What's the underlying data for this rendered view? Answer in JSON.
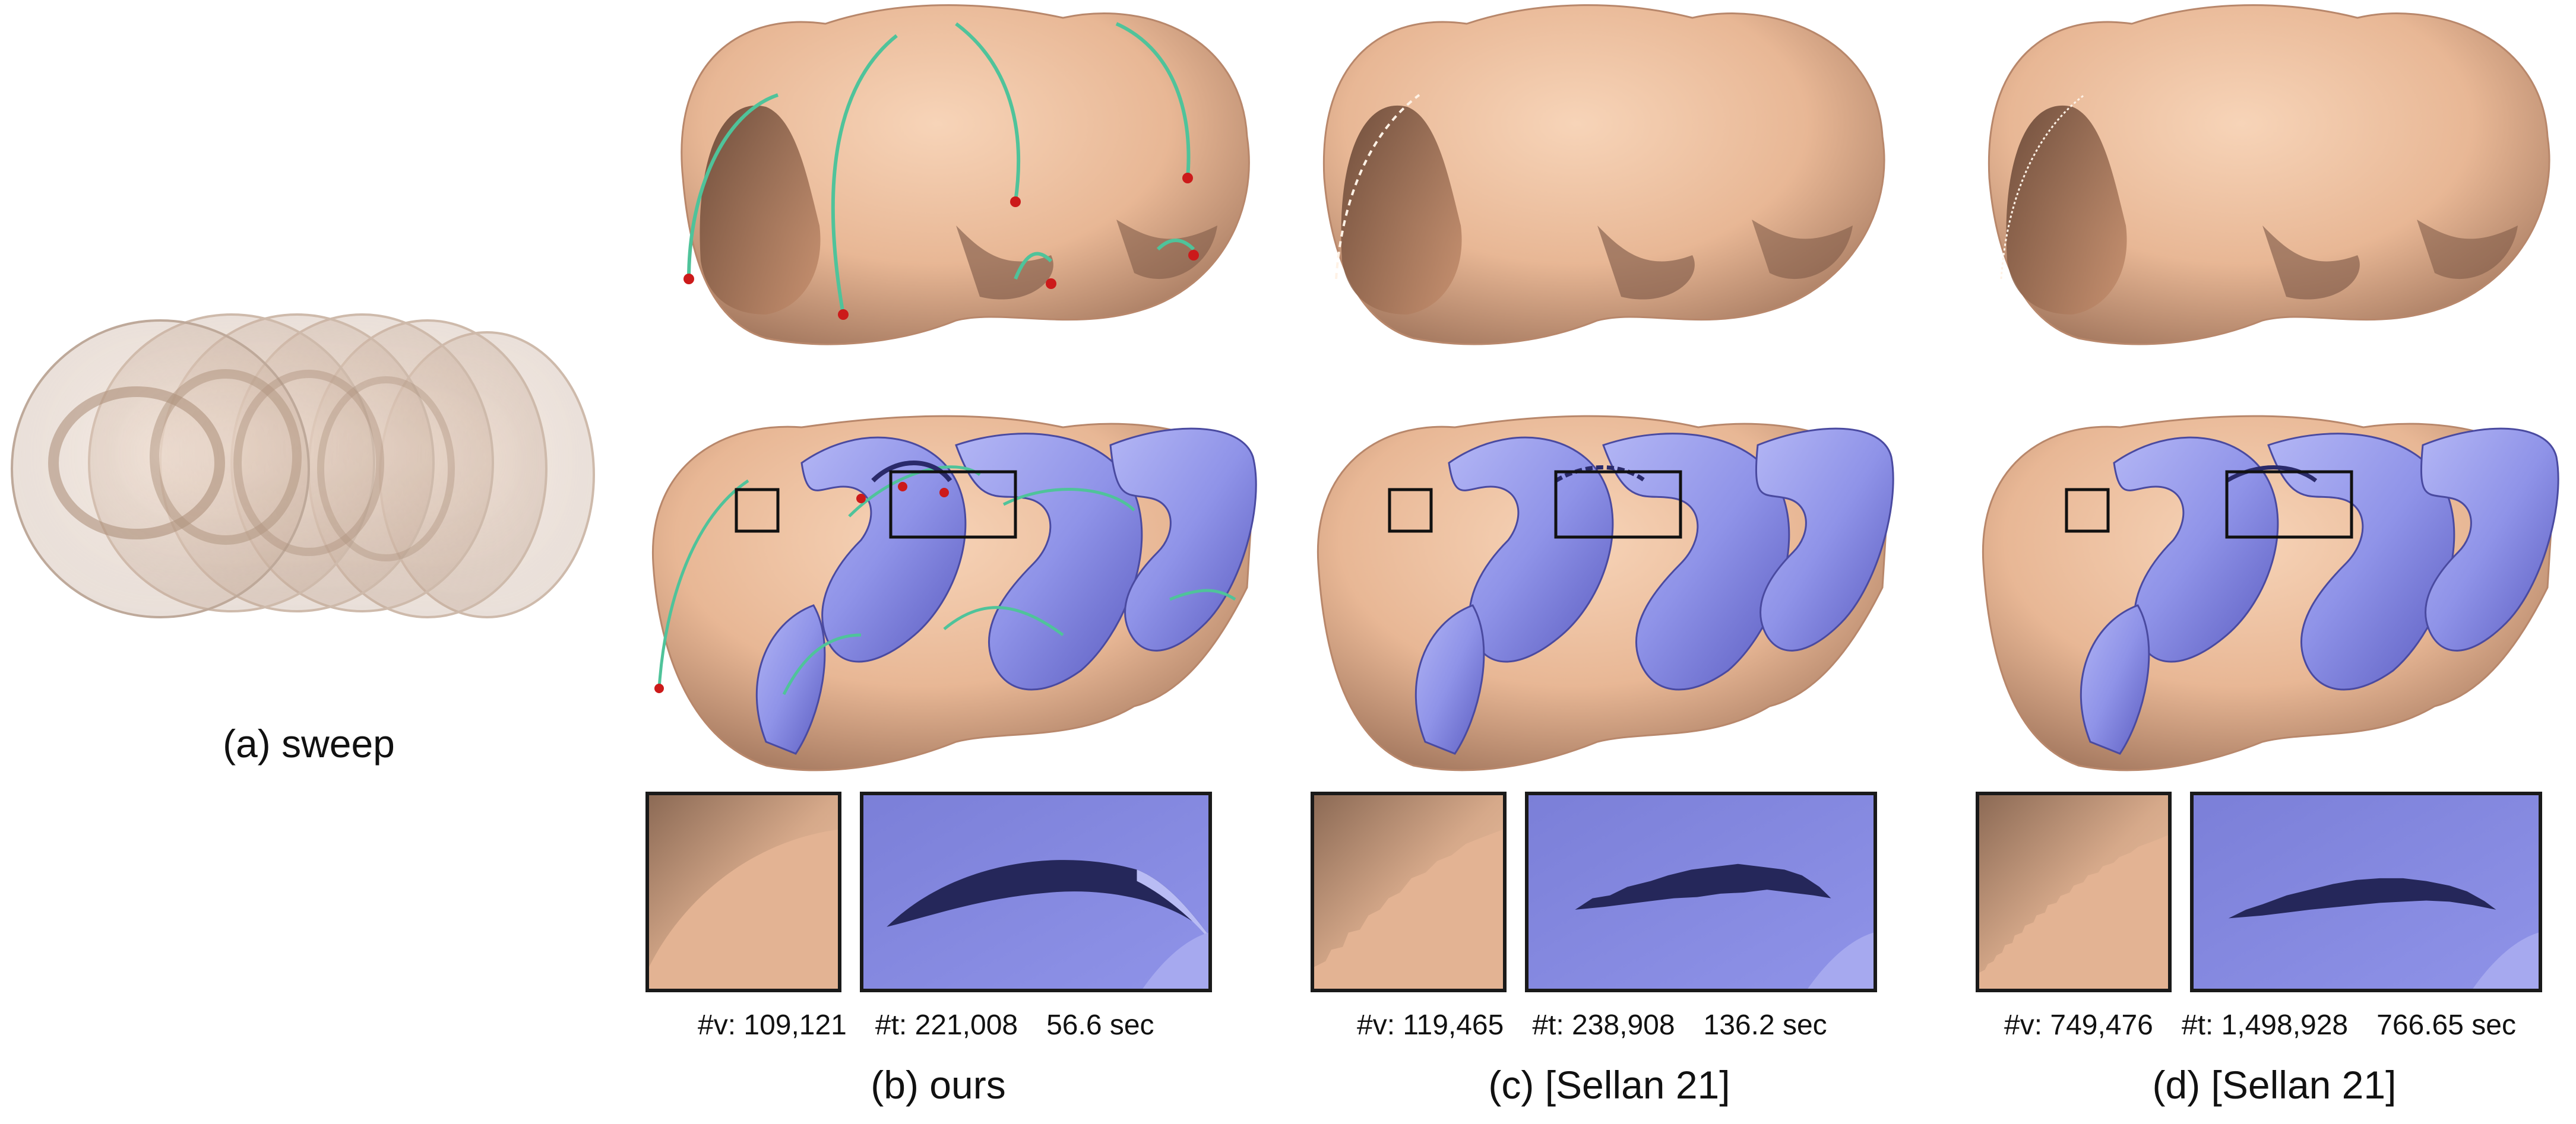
{
  "panels": [
    {
      "id": "a",
      "caption": "(a) sweep"
    },
    {
      "id": "b",
      "caption": "(b) ours",
      "stats": {
        "verts": "#v: 109,121",
        "tris": "#t: 221,008",
        "time": "56.6 sec"
      }
    },
    {
      "id": "c",
      "caption": "(c) [Sellan 21]",
      "stats": {
        "verts": "#v: 119,465",
        "tris": "#t: 238,908",
        "time": "136.2 sec"
      }
    },
    {
      "id": "d",
      "caption": "(d) [Sellan 21]",
      "stats": {
        "verts": "#v: 749,476",
        "tris": "#t: 1,498,928",
        "time": "766.65 sec"
      }
    }
  ],
  "colors": {
    "skin": "#e8b795",
    "skin_dark": "#8a6450",
    "blue": "#8f93e8",
    "blue_dark": "#4a4aa0",
    "curve": "#4fc39a",
    "point": "#cc1a1a",
    "frame": "#1a1a1a"
  }
}
